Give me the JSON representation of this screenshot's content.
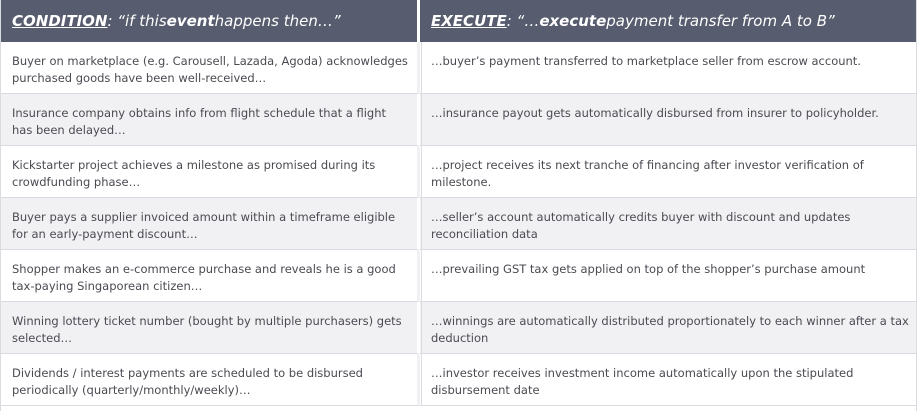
{
  "header": {
    "condition_kw": "CONDITION",
    "condition_pre": ": “if this ",
    "condition_em": "event",
    "condition_post": " happens then…”",
    "execute_kw": "EXECUTE",
    "execute_pre": ": “…",
    "execute_em": "execute",
    "execute_post": " payment transfer from A to B”"
  },
  "rows": [
    {
      "condition": "Buyer on marketplace (e.g. Carousell, Lazada, Agoda) acknowledges purchased goods have been well-received…",
      "execute": "…buyer’s payment transferred to marketplace seller from escrow account."
    },
    {
      "condition": "Insurance company obtains info from flight schedule that a flight has been delayed…",
      "execute": "…insurance payout gets automatically disbursed from insurer to policyholder."
    },
    {
      "condition": "Kickstarter project achieves a milestone as promised during its crowdfunding phase…",
      "execute": "…project receives its next tranche of financing after investor verification of milestone."
    },
    {
      "condition": "Buyer pays a supplier invoiced amount within a timeframe eligible for an early-payment discount…",
      "execute": "…seller’s account automatically credits buyer with discount and updates reconciliation data"
    },
    {
      "condition": "Shopper makes an e-commerce purchase and reveals he is a good tax-paying Singaporean citizen…",
      "execute": "…prevailing GST tax gets applied on top of the shopper’s purchase amount"
    },
    {
      "condition": "Winning lottery ticket number (bought by multiple purchasers) gets selected…",
      "execute": "…winnings are automatically distributed proportionately to each winner after a tax deduction"
    },
    {
      "condition": "Dividends / interest payments are scheduled to be disbursed periodically (quarterly/monthly/weekly)…",
      "execute": "…investor receives investment income automatically upon the stipulated disbursement date"
    }
  ]
}
